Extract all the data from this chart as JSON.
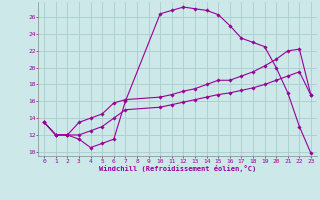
{
  "xlabel": "Windchill (Refroidissement éolien,°C)",
  "bg_color": "#cce8e8",
  "line_color": "#990099",
  "grid_color": "#aacccc",
  "xlim": [
    -0.5,
    23.5
  ],
  "ylim": [
    9.5,
    27.8
  ],
  "yticks": [
    10,
    12,
    14,
    16,
    18,
    20,
    22,
    24,
    26
  ],
  "xticks": [
    0,
    1,
    2,
    3,
    4,
    5,
    6,
    7,
    8,
    9,
    10,
    11,
    12,
    13,
    14,
    15,
    16,
    17,
    18,
    19,
    20,
    21,
    22,
    23
  ],
  "curve1_x": [
    0,
    1,
    2,
    3,
    4,
    5,
    6,
    7,
    10,
    11,
    12,
    13,
    14,
    15,
    16,
    17,
    18,
    19,
    20,
    21,
    22,
    23
  ],
  "curve1_y": [
    13.5,
    12.0,
    12.0,
    11.5,
    10.5,
    11.0,
    11.5,
    16.0,
    26.4,
    26.8,
    27.2,
    27.0,
    26.8,
    26.3,
    25.0,
    23.5,
    23.0,
    22.5,
    20.0,
    17.0,
    13.0,
    9.8
  ],
  "curve2_x": [
    0,
    1,
    2,
    3,
    4,
    5,
    6,
    7,
    10,
    11,
    12,
    13,
    14,
    15,
    16,
    17,
    18,
    19,
    20,
    21,
    22,
    23
  ],
  "curve2_y": [
    13.5,
    12.0,
    12.0,
    13.5,
    14.0,
    14.5,
    15.8,
    16.2,
    16.5,
    16.8,
    17.2,
    17.5,
    18.0,
    18.5,
    18.5,
    19.0,
    19.5,
    20.2,
    21.0,
    22.0,
    22.2,
    16.7
  ],
  "curve3_x": [
    0,
    1,
    2,
    3,
    4,
    5,
    6,
    7,
    10,
    11,
    12,
    13,
    14,
    15,
    16,
    17,
    18,
    19,
    20,
    21,
    22,
    23
  ],
  "curve3_y": [
    13.5,
    12.0,
    12.0,
    12.0,
    12.5,
    13.0,
    14.0,
    15.0,
    15.3,
    15.6,
    15.9,
    16.2,
    16.5,
    16.8,
    17.0,
    17.3,
    17.6,
    18.0,
    18.5,
    19.0,
    19.5,
    16.7
  ]
}
